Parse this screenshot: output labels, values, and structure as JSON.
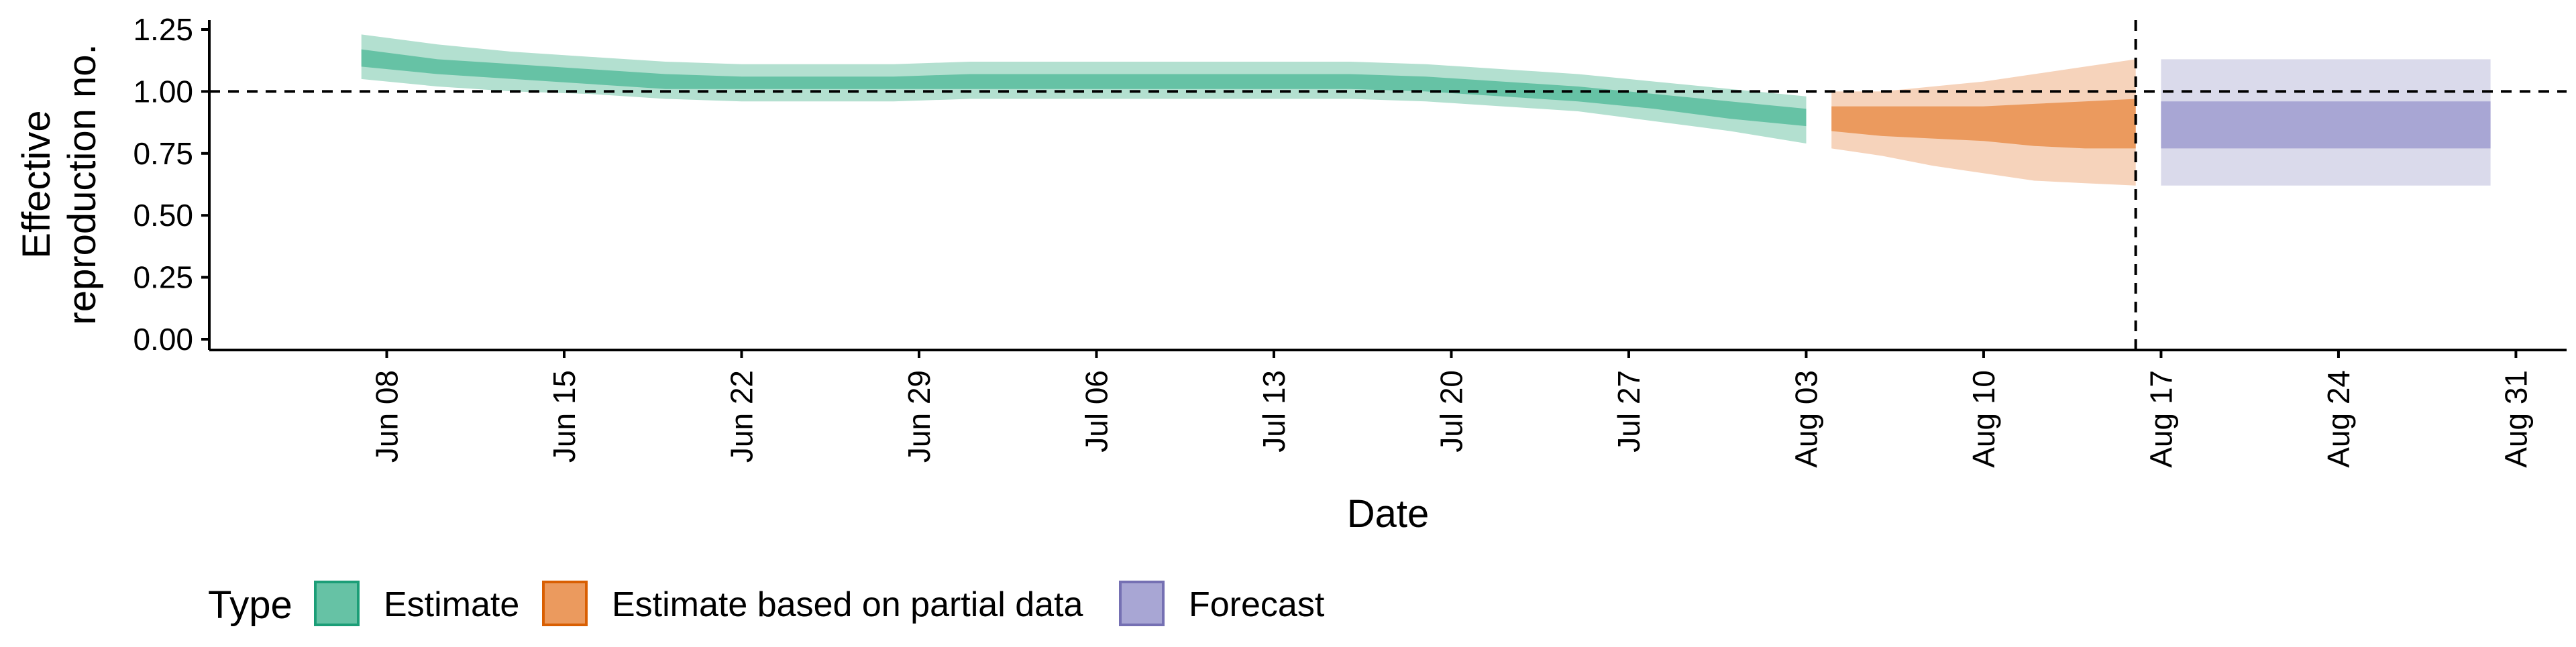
{
  "chart_data": {
    "type": "area",
    "xlabel": "Date",
    "ylabel_lines": [
      "Effective",
      "reproduction no."
    ],
    "ylim": [
      0,
      1.25
    ],
    "yticks": [
      {
        "value": 0,
        "label": "0.00"
      },
      {
        "value": 0.25,
        "label": "0.25"
      },
      {
        "value": 0.5,
        "label": "0.50"
      },
      {
        "value": 0.75,
        "label": "0.75"
      },
      {
        "value": 1.0,
        "label": "1.00"
      },
      {
        "value": 1.25,
        "label": "1.25"
      }
    ],
    "xlim": [
      "2020-06-01",
      "2020-09-02"
    ],
    "xticks": [
      {
        "date": "2020-06-08",
        "label": "Jun 08"
      },
      {
        "date": "2020-06-15",
        "label": "Jun 15"
      },
      {
        "date": "2020-06-22",
        "label": "Jun 22"
      },
      {
        "date": "2020-06-29",
        "label": "Jun 29"
      },
      {
        "date": "2020-07-06",
        "label": "Jul 06"
      },
      {
        "date": "2020-07-13",
        "label": "Jul 13"
      },
      {
        "date": "2020-07-20",
        "label": "Jul 20"
      },
      {
        "date": "2020-07-27",
        "label": "Jul 27"
      },
      {
        "date": "2020-08-03",
        "label": "Aug 03"
      },
      {
        "date": "2020-08-10",
        "label": "Aug 10"
      },
      {
        "date": "2020-08-17",
        "label": "Aug 17"
      },
      {
        "date": "2020-08-24",
        "label": "Aug 24"
      },
      {
        "date": "2020-08-31",
        "label": "Aug 31"
      }
    ],
    "reference_line_y": 1.0,
    "reference_line_date": "2020-08-16",
    "legend": {
      "title": "Type",
      "position": "bottom-left",
      "items": [
        {
          "label": "Estimate",
          "fill": "#66c2a5",
          "border": "#1b9e77"
        },
        {
          "label": "Estimate based on partial data",
          "fill": "#eb9a5e",
          "border": "#d95f02"
        },
        {
          "label": "Forecast",
          "fill": "#a8a6d4",
          "border": "#7570b3"
        }
      ]
    },
    "series": [
      {
        "name": "Estimate",
        "color_outer": "#b3e0d0",
        "color_inner": "#66c2a5",
        "x": [
          "2020-06-07",
          "2020-06-10",
          "2020-06-13",
          "2020-06-16",
          "2020-06-19",
          "2020-06-22",
          "2020-06-25",
          "2020-06-28",
          "2020-07-01",
          "2020-07-04",
          "2020-07-07",
          "2020-07-10",
          "2020-07-13",
          "2020-07-16",
          "2020-07-19",
          "2020-07-22",
          "2020-07-25",
          "2020-07-28",
          "2020-07-31",
          "2020-08-03"
        ],
        "lower_outer": [
          1.05,
          1.02,
          1.0,
          0.99,
          0.97,
          0.96,
          0.96,
          0.96,
          0.97,
          0.97,
          0.97,
          0.97,
          0.97,
          0.97,
          0.96,
          0.94,
          0.92,
          0.88,
          0.84,
          0.79
        ],
        "upper_outer": [
          1.23,
          1.19,
          1.16,
          1.14,
          1.12,
          1.11,
          1.11,
          1.11,
          1.12,
          1.12,
          1.12,
          1.12,
          1.12,
          1.12,
          1.11,
          1.09,
          1.07,
          1.04,
          1.01,
          0.98
        ],
        "lower_inner": [
          1.1,
          1.07,
          1.05,
          1.03,
          1.01,
          1.01,
          1.01,
          1.01,
          1.01,
          1.01,
          1.01,
          1.01,
          1.01,
          1.01,
          1.0,
          0.98,
          0.96,
          0.93,
          0.89,
          0.86
        ],
        "upper_inner": [
          1.17,
          1.13,
          1.11,
          1.09,
          1.07,
          1.06,
          1.06,
          1.06,
          1.07,
          1.07,
          1.07,
          1.07,
          1.07,
          1.07,
          1.06,
          1.04,
          1.02,
          0.99,
          0.96,
          0.93
        ]
      },
      {
        "name": "Estimate based on partial data",
        "color_outer": "#f6d3bb",
        "color_inner": "#eb9a5e",
        "x": [
          "2020-08-04",
          "2020-08-06",
          "2020-08-08",
          "2020-08-10",
          "2020-08-12",
          "2020-08-14",
          "2020-08-16"
        ],
        "lower_outer": [
          0.77,
          0.74,
          0.7,
          0.67,
          0.64,
          0.63,
          0.62
        ],
        "upper_outer": [
          1.0,
          1.0,
          1.02,
          1.04,
          1.07,
          1.1,
          1.13
        ],
        "lower_inner": [
          0.84,
          0.82,
          0.81,
          0.8,
          0.78,
          0.77,
          0.77
        ],
        "upper_inner": [
          0.94,
          0.94,
          0.94,
          0.94,
          0.95,
          0.96,
          0.97
        ]
      },
      {
        "name": "Forecast",
        "color_outer": "#dadaeb",
        "color_inner": "#a8a6d4",
        "x": [
          "2020-08-17",
          "2020-08-30"
        ],
        "lower_outer": [
          0.62,
          0.62
        ],
        "upper_outer": [
          1.13,
          1.13
        ],
        "lower_inner": [
          0.77,
          0.77
        ],
        "upper_inner": [
          0.96,
          0.96
        ]
      }
    ]
  }
}
